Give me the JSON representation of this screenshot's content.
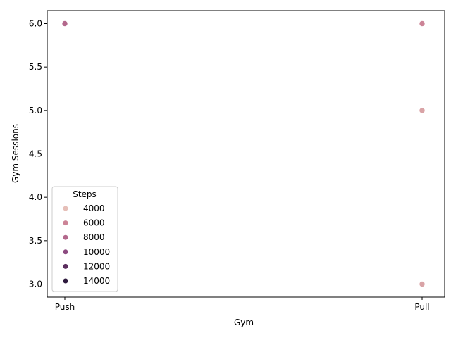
{
  "chart_data": {
    "type": "scatter",
    "title": "",
    "xlabel": "Gym",
    "ylabel": "Gym Sessions",
    "x_categories": [
      "Push",
      "Pull"
    ],
    "yticks": [
      "3.0",
      "3.5",
      "4.0",
      "4.5",
      "5.0",
      "5.5",
      "6.0"
    ],
    "ylim": [
      2.85,
      6.15
    ],
    "grid": false,
    "points": [
      {
        "x": "Push",
        "y": 6.0,
        "hue": 8000,
        "color": "#b3688c"
      },
      {
        "x": "Pull",
        "y": 6.0,
        "hue": 6000,
        "color": "#cc8497"
      },
      {
        "x": "Pull",
        "y": 5.0,
        "hue": 5000,
        "color": "#d9a3a6"
      },
      {
        "x": "Pull",
        "y": 3.0,
        "hue": 5000,
        "color": "#d9a3a6"
      }
    ],
    "legend": {
      "title": "Steps",
      "placement": "lower-left",
      "entries": [
        {
          "label": "4000",
          "color": "#e6bfb8"
        },
        {
          "label": "6000",
          "color": "#cc8497"
        },
        {
          "label": "8000",
          "color": "#b3688c"
        },
        {
          "label": "10000",
          "color": "#8c4a80"
        },
        {
          "label": "12000",
          "color": "#5c2f5f"
        },
        {
          "label": "14000",
          "color": "#2e1a3d"
        }
      ]
    }
  }
}
